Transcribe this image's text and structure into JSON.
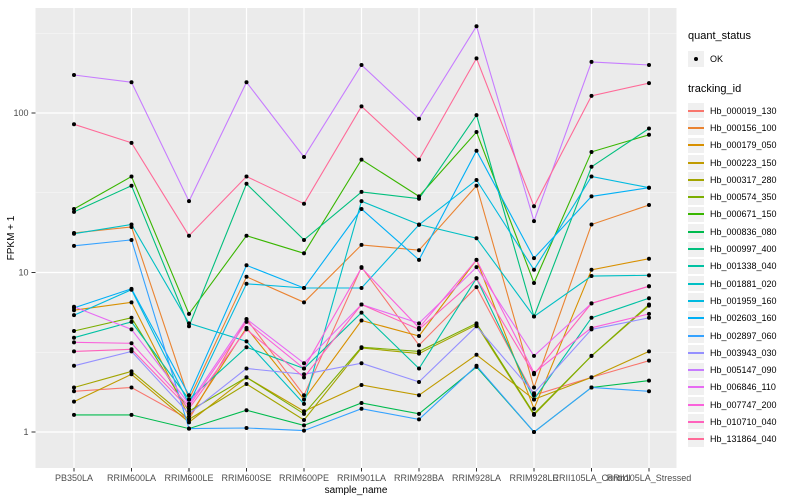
{
  "chart_data": {
    "type": "line",
    "title": "",
    "xlabel": "sample_name",
    "ylabel": "FPKM + 1",
    "yscale": "log10",
    "ylim": [
      1,
      400
    ],
    "grid": true,
    "panel_bg": "#EBEBEB",
    "grid_color": "#FFFFFF",
    "tick_label_color": "#4D4D4D",
    "axis_title_color": "#000000",
    "marker_color": "#000000",
    "yticks": [
      {
        "label": "1",
        "value": 1
      },
      {
        "label": "10",
        "value": 10
      },
      {
        "label": "100",
        "value": 100
      }
    ],
    "yminor": [
      3.162,
      31.62,
      316.2
    ],
    "categories": [
      "PB350LA",
      "RRIM600LA",
      "RRIM600LE",
      "RRIM600SE",
      "RRIM600PE",
      "RRIM901LA",
      "RRIM928BA",
      "RRIM928LA",
      "RRIM928LE",
      "RRII105LA_Control",
      "RRII105LA_Stressed"
    ],
    "series": [
      {
        "name": "Hb_000019_130",
        "color": "#F8766D",
        "values": [
          1.8,
          1.9,
          1.2,
          5.1,
          1.7,
          10.8,
          3.5,
          8.1,
          1.7,
          2.2,
          2.8
        ]
      },
      {
        "name": "Hb_000156_100",
        "color": "#EA8331",
        "values": [
          17.7,
          19.3,
          1.6,
          9.4,
          6.5,
          14.9,
          13.8,
          35,
          1.9,
          20,
          26.5
        ]
      },
      {
        "name": "Hb_000179_050",
        "color": "#D89000",
        "values": [
          5.8,
          6.5,
          1.25,
          4.5,
          1.6,
          5,
          4,
          12,
          1.4,
          10.4,
          12.2
        ]
      },
      {
        "name": "Hb_000223_150",
        "color": "#C09B00",
        "values": [
          1.55,
          2.3,
          1.15,
          2.2,
          1.35,
          1.97,
          1.7,
          3.05,
          1.6,
          2.2,
          3.2
        ]
      },
      {
        "name": "Hb_000317_280",
        "color": "#A3A500",
        "values": [
          1.9,
          2.4,
          1.2,
          2,
          1.19,
          3.36,
          3.1,
          4.7,
          1.28,
          3,
          6.2
        ]
      },
      {
        "name": "Hb_000574_350",
        "color": "#7CAE00",
        "values": [
          4.3,
          5.2,
          1.35,
          2.2,
          1.3,
          3.4,
          3.2,
          4.8,
          1.3,
          3,
          6.3
        ]
      },
      {
        "name": "Hb_000671_150",
        "color": "#39B600",
        "values": [
          25,
          40,
          5.5,
          17,
          13.2,
          51,
          30,
          76,
          8.6,
          57,
          73
        ]
      },
      {
        "name": "Hb_000836_080",
        "color": "#00BB4E",
        "values": [
          1.28,
          1.28,
          1.05,
          1.37,
          1.1,
          1.52,
          1.3,
          2.56,
          1,
          1.9,
          2.1
        ]
      },
      {
        "name": "Hb_000997_400",
        "color": "#00BF7D",
        "values": [
          24,
          35,
          4.6,
          36,
          16,
          32,
          29,
          97,
          5.3,
          46,
          80
        ]
      },
      {
        "name": "Hb_001338_040",
        "color": "#00C1A3",
        "values": [
          3.9,
          4.9,
          1.6,
          3.4,
          2.5,
          5.6,
          2.5,
          9.2,
          1.6,
          5.2,
          6.9
        ]
      },
      {
        "name": "Hb_001881_020",
        "color": "#00BFC4",
        "values": [
          17.5,
          20,
          4.8,
          3.7,
          1.5,
          28,
          20,
          16.4,
          5.3,
          9.5,
          9.6
        ]
      },
      {
        "name": "Hb_001959_160",
        "color": "#00BAE0",
        "values": [
          5.4,
          7.8,
          1.5,
          8.5,
          8,
          8,
          19.9,
          38,
          10.4,
          40,
          34
        ]
      },
      {
        "name": "Hb_002603_160",
        "color": "#00B0F6",
        "values": [
          6,
          7.9,
          1.7,
          11.1,
          8,
          25,
          12,
          58,
          12.3,
          30,
          34
        ]
      },
      {
        "name": "Hb_002897_060",
        "color": "#35A2FF",
        "values": [
          14.7,
          16,
          1.05,
          1.06,
          1.02,
          1.4,
          1.2,
          2.6,
          1,
          1.9,
          1.8
        ]
      },
      {
        "name": "Hb_003943_030",
        "color": "#9590FF",
        "values": [
          2.6,
          3.2,
          1.3,
          2.5,
          2.3,
          2.7,
          2.06,
          4.6,
          1.75,
          4.4,
          5.2
        ]
      },
      {
        "name": "Hb_005147_090",
        "color": "#C77CFF",
        "values": [
          173,
          156,
          28,
          156,
          53,
          200,
          92,
          350,
          21,
          209,
          200
        ]
      },
      {
        "name": "Hb_006846_110",
        "color": "#E76BF3",
        "values": [
          6.1,
          4.4,
          1.5,
          5.1,
          2.7,
          6.3,
          4.8,
          10.8,
          3,
          6.4,
          8.2
        ]
      },
      {
        "name": "Hb_007747_200",
        "color": "#FA62DB",
        "values": [
          3.65,
          3.6,
          1.45,
          4.9,
          2.5,
          10.7,
          4.5,
          12,
          2.35,
          4.5,
          5.5
        ]
      },
      {
        "name": "Hb_010710_040",
        "color": "#FF62BC",
        "values": [
          3.2,
          3.3,
          1.4,
          4.4,
          2.2,
          6.3,
          4.4,
          9.2,
          2.3,
          6.4,
          8.2
        ]
      },
      {
        "name": "Hb_131864_040",
        "color": "#FF6A98",
        "values": [
          85,
          65,
          17,
          40,
          27,
          110,
          51,
          220,
          26,
          128,
          154
        ]
      }
    ],
    "legend_position": "right"
  },
  "legend": {
    "quant_status": {
      "title": "quant_status",
      "items": [
        {
          "label": "OK",
          "marker": "point"
        }
      ]
    },
    "tracking_id_title": "tracking_id"
  }
}
